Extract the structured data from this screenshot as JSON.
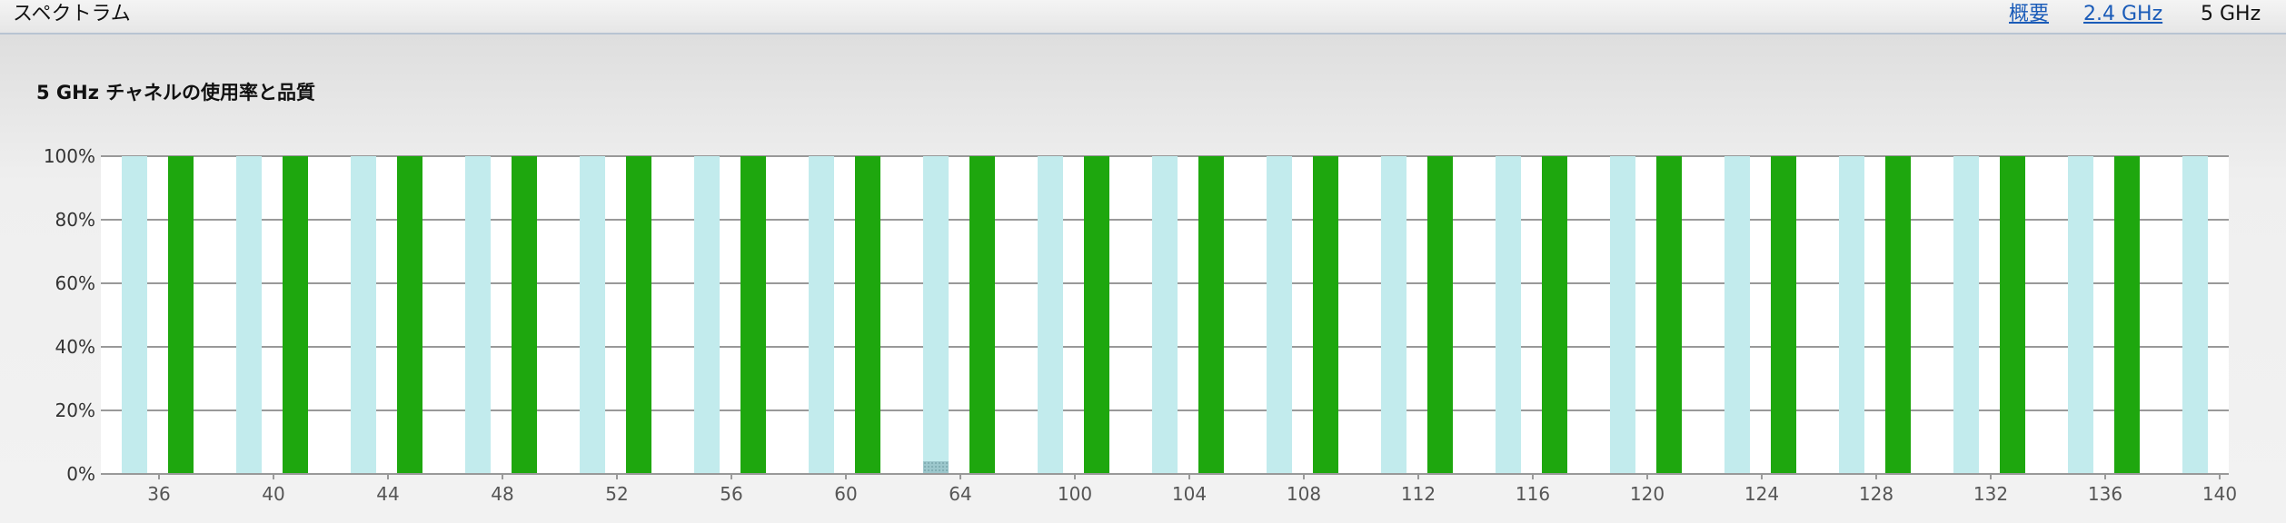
{
  "header": {
    "title": "スペクトラム",
    "tabs": [
      {
        "label": "概要",
        "link": true
      },
      {
        "label": "2.4 GHz",
        "link": true
      },
      {
        "label": "5 GHz",
        "link": false
      }
    ]
  },
  "chart_data": {
    "type": "bar",
    "title": "5 GHz チャネルの使用率と品質",
    "xlabel": "",
    "ylabel": "",
    "ylim": [
      0,
      100
    ],
    "yticks": [
      "0%",
      "20%",
      "40%",
      "60%",
      "80%",
      "100%"
    ],
    "grid": true,
    "categories": [
      "36",
      "40",
      "44",
      "48",
      "52",
      "56",
      "60",
      "64",
      "100",
      "104",
      "108",
      "112",
      "116",
      "120",
      "124",
      "128",
      "132",
      "136",
      "140"
    ],
    "series": [
      {
        "values": [
          0,
          0,
          0,
          0,
          0,
          0,
          0,
          4,
          0,
          0,
          0,
          0,
          0,
          0,
          0,
          0,
          0,
          0,
          0
        ],
        "color": "#9cc7cc"
      },
      {
        "values": [
          100,
          100,
          100,
          100,
          100,
          100,
          100,
          100,
          100,
          100,
          100,
          100,
          100,
          100,
          100,
          100,
          100,
          100,
          100
        ],
        "color": "#c2ebed"
      },
      {
        "values": [
          100,
          100,
          100,
          100,
          100,
          100,
          100,
          100,
          100,
          100,
          100,
          100,
          100,
          100,
          100,
          100,
          100,
          100,
          null
        ],
        "color": "#1ea70e"
      }
    ]
  }
}
